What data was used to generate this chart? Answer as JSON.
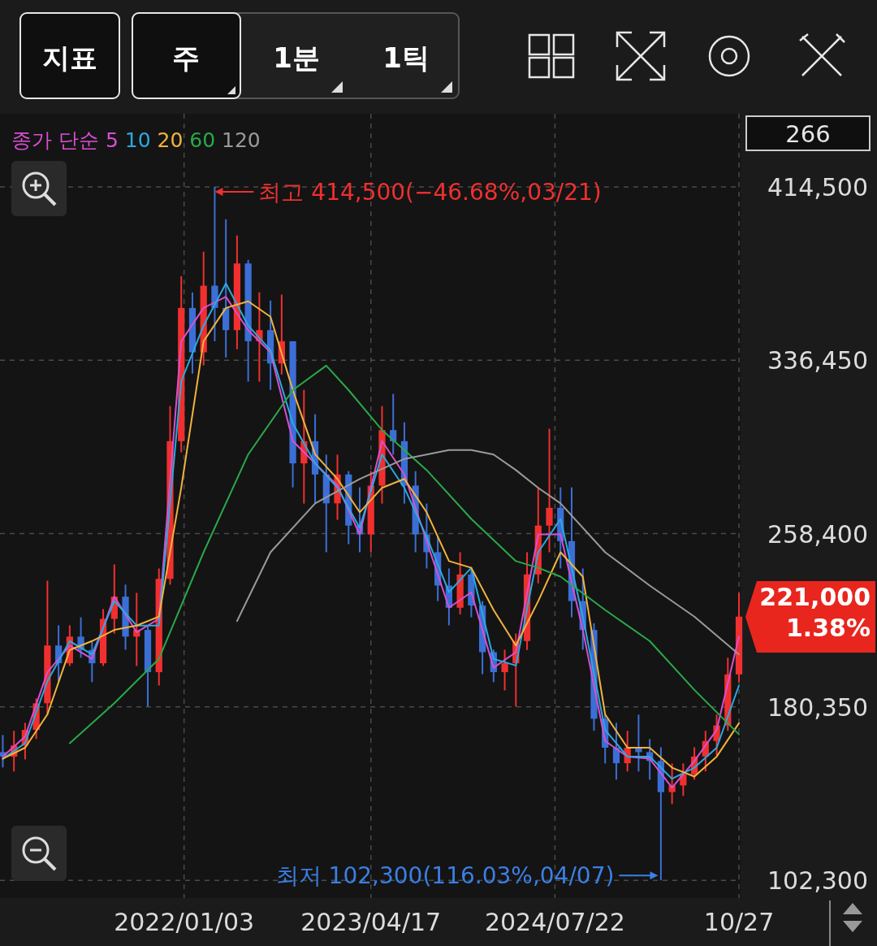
{
  "chart_data": {
    "type": "candlestick",
    "x": [
      "2020-10-05",
      "2020-11-02",
      "2020-11-30",
      "2020-12-28",
      "2021-01-25",
      "2021-02-22",
      "2021-03-22",
      "2021-04-19",
      "2021-05-17",
      "2021-06-14",
      "2021-07-12",
      "2021-08-09",
      "2021-09-06",
      "2021-10-04",
      "2021-11-01",
      "2021-11-29",
      "2021-12-27",
      "2022-01-24",
      "2022-02-21",
      "2022-03-21",
      "2022-04-18",
      "2022-05-16",
      "2022-06-13",
      "2022-07-11",
      "2022-08-08",
      "2022-09-05",
      "2022-10-03",
      "2022-10-31",
      "2022-11-28",
      "2022-12-26",
      "2023-01-23",
      "2023-02-20",
      "2023-03-20",
      "2023-04-17",
      "2023-05-15",
      "2023-06-12",
      "2023-07-10",
      "2023-08-07",
      "2023-09-04",
      "2023-10-02",
      "2023-10-30",
      "2023-11-27",
      "2023-12-25",
      "2024-01-22",
      "2024-02-19",
      "2024-03-18",
      "2024-04-15",
      "2024-05-13",
      "2024-06-10",
      "2024-07-08",
      "2024-08-05",
      "2024-09-02",
      "2024-09-30",
      "2024-10-28",
      "2024-11-25",
      "2024-12-23",
      "2025-01-20",
      "2025-02-17",
      "2025-03-17",
      "2025-04-14",
      "2025-05-12",
      "2025-06-09",
      "2025-07-07",
      "2025-08-04",
      "2025-09-01",
      "2025-09-29",
      "2025-10-27"
    ],
    "ohlc": [
      [
        160000,
        167700,
        153100,
        158000
      ],
      [
        158000,
        169600,
        151300,
        163000
      ],
      [
        163000,
        173200,
        156700,
        170000
      ],
      [
        170000,
        184200,
        165900,
        182000
      ],
      [
        182000,
        237200,
        176900,
        208000
      ],
      [
        208000,
        217100,
        191500,
        200000
      ],
      [
        200000,
        217100,
        198800,
        212000
      ],
      [
        212000,
        220700,
        202500,
        206000
      ],
      [
        206000,
        209800,
        191500,
        200000
      ],
      [
        200000,
        224400,
        198800,
        220000
      ],
      [
        220000,
        244500,
        213400,
        230000
      ],
      [
        230000,
        235400,
        206100,
        212000
      ],
      [
        212000,
        231700,
        198800,
        215000
      ],
      [
        215000,
        217100,
        180500,
        196000
      ],
      [
        196000,
        242700,
        190000,
        238000
      ],
      [
        238000,
        315800,
        235400,
        300000
      ],
      [
        300000,
        374300,
        295000,
        360000
      ],
      [
        360000,
        367000,
        330400,
        340000
      ],
      [
        340000,
        385300,
        334100,
        370000
      ],
      [
        370000,
        414500,
        345000,
        360000
      ],
      [
        360000,
        399900,
        337700,
        350000
      ],
      [
        350000,
        392600,
        341400,
        380000
      ],
      [
        380000,
        381600,
        326800,
        345000
      ],
      [
        345000,
        367000,
        326800,
        350000
      ],
      [
        350000,
        363300,
        323100,
        335000
      ],
      [
        335000,
        366000,
        330000,
        345000
      ],
      [
        345000,
        345000,
        279200,
        290000
      ],
      [
        290000,
        323100,
        271900,
        300000
      ],
      [
        300000,
        312100,
        271900,
        285000
      ],
      [
        285000,
        293900,
        250000,
        272000
      ],
      [
        272000,
        293900,
        264600,
        285000
      ],
      [
        285000,
        286500,
        253600,
        262000
      ],
      [
        262000,
        279200,
        250000,
        258000
      ],
      [
        258000,
        286500,
        250000,
        280000
      ],
      [
        280000,
        315800,
        271900,
        305000
      ],
      [
        305000,
        321300,
        293900,
        300000
      ],
      [
        300000,
        308500,
        271900,
        280000
      ],
      [
        280000,
        286500,
        250000,
        258000
      ],
      [
        258000,
        271900,
        242700,
        250000
      ],
      [
        250000,
        257300,
        228000,
        235000
      ],
      [
        235000,
        242700,
        217100,
        225000
      ],
      [
        225000,
        250000,
        222000,
        240000
      ],
      [
        240000,
        242700,
        220700,
        226000
      ],
      [
        226000,
        228000,
        195100,
        205000
      ],
      [
        205000,
        206100,
        191500,
        196000
      ],
      [
        196000,
        206100,
        187800,
        200000
      ],
      [
        200000,
        213400,
        180500,
        210000
      ],
      [
        210000,
        250000,
        206000,
        240000
      ],
      [
        240000,
        279200,
        236000,
        262000
      ],
      [
        262000,
        305600,
        250000,
        270000
      ],
      [
        270000,
        279200,
        242700,
        255000
      ],
      [
        255000,
        279200,
        220700,
        228000
      ],
      [
        228000,
        242700,
        206100,
        215000
      ],
      [
        215000,
        218000,
        169600,
        175000
      ],
      [
        175000,
        176900,
        154900,
        162000
      ],
      [
        162000,
        173200,
        147600,
        155000
      ],
      [
        155000,
        169600,
        151300,
        162000
      ],
      [
        162000,
        176900,
        151300,
        160000
      ],
      [
        160000,
        165900,
        147600,
        156000
      ],
      [
        156000,
        162200,
        102300,
        142000
      ],
      [
        142000,
        154900,
        136600,
        145000
      ],
      [
        145000,
        154900,
        140300,
        150000
      ],
      [
        150000,
        162200,
        147600,
        158000
      ],
      [
        158000,
        169600,
        151300,
        165000
      ],
      [
        165000,
        176900,
        158600,
        172000
      ],
      [
        172000,
        202500,
        169600,
        195000
      ],
      [
        195000,
        231700,
        191500,
        221000
      ]
    ],
    "colors": [
      "#3b6fd6",
      "#f0302f",
      "#f0302f",
      "#f0302f",
      "#f0302f",
      "#3b6fd6",
      "#f0302f",
      "#3b6fd6",
      "#3b6fd6",
      "#f0302f",
      "#f0302f",
      "#3b6fd6",
      "#f0302f",
      "#3b6fd6",
      "#f0302f",
      "#f0302f",
      "#f0302f",
      "#3b6fd6",
      "#f0302f",
      "#3b6fd6",
      "#3b6fd6",
      "#f0302f",
      "#3b6fd6",
      "#f0302f",
      "#3b6fd6",
      "#f0302f",
      "#3b6fd6",
      "#f0302f",
      "#3b6fd6",
      "#3b6fd6",
      "#f0302f",
      "#3b6fd6",
      "#3b6fd6",
      "#f0302f",
      "#f0302f",
      "#3b6fd6",
      "#3b6fd6",
      "#3b6fd6",
      "#3b6fd6",
      "#3b6fd6",
      "#3b6fd6",
      "#f0302f",
      "#3b6fd6",
      "#3b6fd6",
      "#3b6fd6",
      "#f0302f",
      "#f0302f",
      "#f0302f",
      "#f0302f",
      "#f0302f",
      "#3b6fd6",
      "#3b6fd6",
      "#3b6fd6",
      "#3b6fd6",
      "#3b6fd6",
      "#3b6fd6",
      "#f0302f",
      "#3b6fd6",
      "#3b6fd6",
      "#3b6fd6",
      "#f0302f",
      "#f0302f",
      "#f0302f",
      "#f0302f",
      "#f0302f",
      "#f0302f",
      "#f0302f"
    ],
    "legend_title": "종가 단순",
    "legend": "top left",
    "series": [
      {
        "name": "5",
        "type": "line",
        "color": "#d94fd2",
        "x": [
          "2020-10-05",
          "2020-11-30",
          "2021-01-25",
          "2021-03-22",
          "2021-05-17",
          "2021-07-12",
          "2021-09-06",
          "2021-11-01",
          "2021-12-27",
          "2022-02-21",
          "2022-04-18",
          "2022-06-13",
          "2022-08-08",
          "2022-10-03",
          "2022-11-28",
          "2023-01-23",
          "2023-03-20",
          "2023-05-15",
          "2023-07-10",
          "2023-09-04",
          "2023-10-30",
          "2023-12-25",
          "2024-02-19",
          "2024-04-15",
          "2024-06-10",
          "2024-08-05",
          "2024-09-30",
          "2024-11-25",
          "2025-01-20",
          "2025-03-17",
          "2025-05-12",
          "2025-07-07",
          "2025-09-01",
          "2025-10-27"
        ],
        "values": [
          158000,
          167000,
          196000,
          208000,
          202000,
          230000,
          214000,
          220000,
          345000,
          360000,
          365000,
          350000,
          340000,
          300000,
          290000,
          280000,
          258000,
          300000,
          285000,
          255000,
          225000,
          232000,
          198000,
          205000,
          258000,
          258000,
          215000,
          165000,
          158000,
          157000,
          144000,
          156000,
          170000,
          212000
        ]
      },
      {
        "name": "10",
        "type": "line",
        "color": "#2aa9e0",
        "x": [
          "2020-10-05",
          "2020-11-30",
          "2021-01-25",
          "2021-03-22",
          "2021-05-17",
          "2021-07-12",
          "2021-09-06",
          "2021-11-01",
          "2021-12-27",
          "2022-02-21",
          "2022-04-18",
          "2022-06-13",
          "2022-08-08",
          "2022-10-03",
          "2022-11-28",
          "2023-01-23",
          "2023-03-20",
          "2023-05-15",
          "2023-07-10",
          "2023-09-04",
          "2023-10-30",
          "2023-12-25",
          "2024-02-19",
          "2024-04-15",
          "2024-06-10",
          "2024-08-05",
          "2024-09-30",
          "2024-11-25",
          "2025-01-20",
          "2025-03-17",
          "2025-05-12",
          "2025-07-07",
          "2025-09-01",
          "2025-10-27"
        ],
        "values": [
          157000,
          164000,
          192000,
          210000,
          204000,
          228000,
          217000,
          217000,
          327000,
          352000,
          371000,
          352000,
          341000,
          308000,
          290000,
          279000,
          261000,
          294000,
          279000,
          257000,
          232000,
          243000,
          202000,
          199000,
          250000,
          265000,
          221000,
          170000,
          158000,
          158000,
          148000,
          153000,
          162000,
          190000
        ]
      },
      {
        "name": "20",
        "type": "line",
        "color": "#f2b33d",
        "x": [
          "2020-10-05",
          "2020-11-30",
          "2021-01-25",
          "2021-03-22",
          "2021-05-17",
          "2021-07-12",
          "2021-09-06",
          "2021-11-01",
          "2021-12-27",
          "2022-02-21",
          "2022-04-18",
          "2022-06-13",
          "2022-08-08",
          "2022-10-03",
          "2022-11-28",
          "2023-01-23",
          "2023-03-20",
          "2023-05-15",
          "2023-07-10",
          "2023-09-04",
          "2023-10-30",
          "2023-12-25",
          "2024-02-19",
          "2024-04-15",
          "2024-06-10",
          "2024-08-05",
          "2024-09-30",
          "2024-11-25",
          "2025-01-20",
          "2025-03-17",
          "2025-05-12",
          "2025-07-07",
          "2025-09-01",
          "2025-10-27"
        ],
        "values": [
          157000,
          162000,
          177000,
          206000,
          210000,
          215000,
          217000,
          221000,
          279000,
          345000,
          360000,
          363000,
          356000,
          323000,
          294000,
          283000,
          268000,
          279000,
          283000,
          268000,
          246000,
          243000,
          224000,
          208000,
          228000,
          250000,
          239000,
          177000,
          162000,
          162000,
          153000,
          149000,
          158000,
          173000
        ]
      },
      {
        "name": "60",
        "type": "line",
        "color": "#2aa84a",
        "x": [
          "2021-03-22",
          "2021-07-12",
          "2021-11-01",
          "2022-02-21",
          "2022-06-13",
          "2022-10-03",
          "2022-12-26",
          "2023-02-20",
          "2023-05-15",
          "2023-09-04",
          "2023-12-25",
          "2024-04-15",
          "2024-06-10",
          "2024-08-05",
          "2024-11-25",
          "2025-03-17",
          "2025-07-07",
          "2025-10-27"
        ],
        "values": [
          164000,
          182000,
          202000,
          250000,
          294000,
          323000,
          334000,
          323000,
          305000,
          287000,
          265000,
          246000,
          243000,
          239000,
          224000,
          210000,
          188000,
          168000
        ]
      },
      {
        "name": "120",
        "type": "line",
        "color": "#9a9a9a",
        "x": [
          "2022-05-16",
          "2022-08-08",
          "2022-11-28",
          "2023-03-20",
          "2023-07-10",
          "2023-10-30",
          "2023-12-25",
          "2024-02-19",
          "2024-04-15",
          "2024-06-10",
          "2024-08-05",
          "2024-11-25",
          "2025-03-17",
          "2025-07-07",
          "2025-10-27"
        ],
        "values": [
          219000,
          250000,
          272000,
          283000,
          292000,
          296000,
          296000,
          294000,
          287000,
          279000,
          272000,
          250000,
          235000,
          221000,
          204000
        ]
      }
    ],
    "xlim": [
      "2020-09-28",
      "2025-10-31"
    ],
    "xticks": [
      {
        "value": "2022-01-03",
        "label": "2022/01/03"
      },
      {
        "value": "2023-04-17",
        "label": "2023/04/17"
      },
      {
        "value": "2024-07-22",
        "label": "2024/07/22"
      },
      {
        "value": "2025-10-27",
        "label": "10/27"
      }
    ],
    "ylim": [
      94300,
      447400
    ],
    "yticks": [
      {
        "value": 102300,
        "label": "102,300"
      },
      {
        "value": 180350,
        "label": "180,350"
      },
      {
        "value": 258400,
        "label": "258,400"
      },
      {
        "value": 336450,
        "label": "336,450"
      },
      {
        "value": 414500,
        "label": "414,500"
      }
    ],
    "grid": true,
    "annotations": [
      "지표",
      "주",
      "1분",
      "1틱",
      "266",
      "221,000\n1.38%",
      {
        "text": "최고 414,500(−46.68%,03/21)",
        "x": "2022-03-21",
        "y": 414500
      },
      {
        "text": "최저 102,300(116.03%,04/07)",
        "x": "2025-04-07",
        "y": 102300
      }
    ]
  }
}
